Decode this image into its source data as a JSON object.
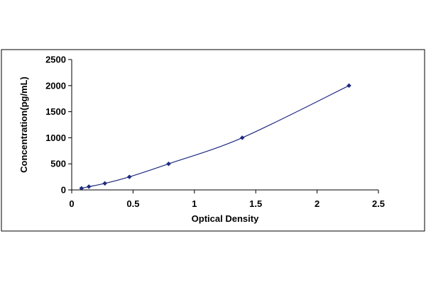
{
  "chart_data": {
    "type": "scatter",
    "title": "",
    "xlabel": "Optical Density",
    "ylabel": "Concentration(pg/mL)",
    "xlim": [
      0,
      2.5
    ],
    "ylim": [
      0,
      2500
    ],
    "x_ticks": [
      0,
      0.5,
      1,
      1.5,
      2,
      2.5
    ],
    "x_tick_labels": [
      "0",
      "0.5",
      "1",
      "1.5",
      "2",
      "2.5"
    ],
    "y_ticks": [
      0,
      500,
      1000,
      1500,
      2000,
      2500
    ],
    "y_tick_labels": [
      "0",
      "500",
      "1000",
      "1500",
      "2000",
      "2500"
    ],
    "grid": false,
    "legend": "none",
    "series": [
      {
        "x": [
          0.08,
          0.14,
          0.27,
          0.47,
          0.79,
          1.39,
          2.26
        ],
        "y": [
          31.25,
          62.5,
          125,
          250,
          500,
          1000,
          2000
        ],
        "marker": "diamond",
        "smooth_line": true,
        "color": "#1f2a80",
        "line_color": "#1f2a80"
      }
    ]
  }
}
